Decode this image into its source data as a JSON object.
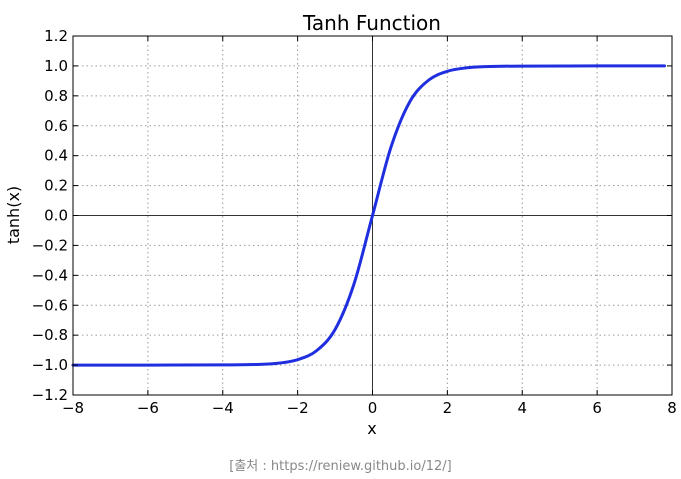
{
  "chart_data": {
    "type": "line",
    "title": "Tanh Function",
    "xlabel": "x",
    "ylabel": "tanh(x)",
    "xlim": [
      -8,
      8
    ],
    "ylim": [
      -1.2,
      1.2
    ],
    "xticks": [
      -8,
      -6,
      -4,
      -2,
      0,
      2,
      4,
      6,
      8
    ],
    "xtick_labels": [
      "−8",
      "−6",
      "−4",
      "−2",
      "0",
      "2",
      "4",
      "6",
      "8"
    ],
    "yticks": [
      1.2,
      1.0,
      0.8,
      0.6,
      0.4,
      0.2,
      0.0,
      -0.2,
      -0.4,
      -0.6,
      -0.8,
      -1.0,
      -1.2
    ],
    "ytick_labels": [
      "1.2",
      "1.0",
      "0.8",
      "0.6",
      "0.4",
      "0.2",
      "0.0",
      "−0.2",
      "−0.4",
      "−0.6",
      "−0.8",
      "−1.0",
      "−1.2"
    ],
    "grid": true,
    "series": [
      {
        "x": [
          -8,
          -6,
          -4,
          -3,
          -2.5,
          -2,
          -1.5,
          -1,
          -0.5,
          0,
          0.5,
          1,
          1.5,
          2,
          2.5,
          3,
          4,
          6,
          7.8
        ],
        "y": [
          -1.0,
          -1.0,
          -0.999,
          -0.995,
          -0.987,
          -0.964,
          -0.905,
          -0.762,
          -0.462,
          0.0,
          0.462,
          0.762,
          0.905,
          0.964,
          0.987,
          0.995,
          0.999,
          1.0,
          1.0
        ]
      }
    ]
  },
  "colors": {
    "line": "#1f2fe0"
  },
  "caption": "[출처 : https://reniew.github.io/12/]"
}
